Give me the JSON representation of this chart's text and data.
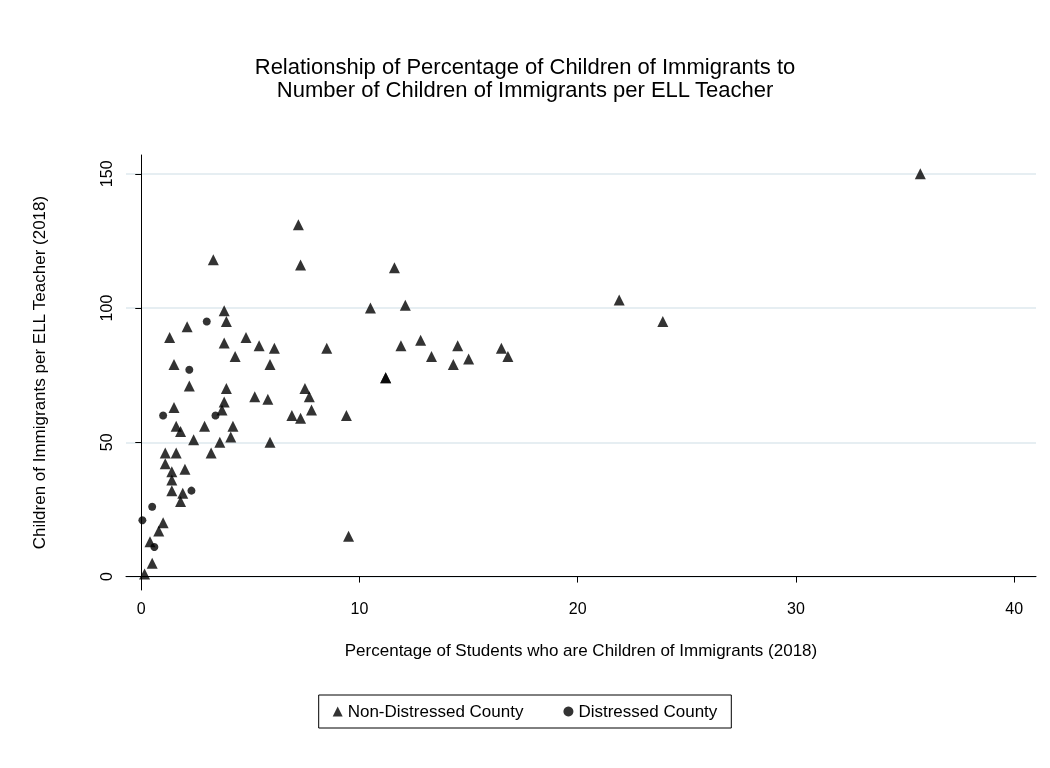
{
  "chart_data": {
    "type": "scatter",
    "title": "Relationship of Percentage of Children of Immigrants to\nNumber of Children of Immigrants per ELL Teacher",
    "xlabel": "Percentage of Students who are Children of Immigrants (2018)",
    "ylabel": "Children of Immigrants per ELL Teacher (2018)",
    "xlim": [
      -0.7,
      41
    ],
    "xticks": [
      0,
      10,
      20,
      30,
      40
    ],
    "ylim": [
      -5,
      157
    ],
    "yticks": [
      0,
      50,
      100,
      150
    ],
    "grid": "y",
    "legend": "bottom",
    "series": [
      {
        "name": "Non-Distressed County",
        "color": "#000000",
        "marker": "triangle",
        "x": [
          0.15,
          0.4,
          0.5,
          0.8,
          1.0,
          1.1,
          1.1,
          1.3,
          1.4,
          1.4,
          1.4,
          1.5,
          1.5,
          1.6,
          1.6,
          1.8,
          1.8,
          1.9,
          2.0,
          2.1,
          2.2,
          2.4,
          2.9,
          3.2,
          3.3,
          3.6,
          3.7,
          3.8,
          3.8,
          3.8,
          3.9,
          3.9,
          4.1,
          4.2,
          4.3,
          4.8,
          5.2,
          5.4,
          5.8,
          5.9,
          5.9,
          6.1,
          6.9,
          7.2,
          7.3,
          7.3,
          7.5,
          7.7,
          7.8,
          8.5,
          9.4,
          9.5,
          10.5,
          11.2,
          11.2,
          11.6,
          11.9,
          12.1,
          12.8,
          13.3,
          14.3,
          14.5,
          15.0,
          16.5,
          16.8,
          21.9,
          23.9,
          35.7
        ],
        "values": [
          1,
          13,
          5,
          17,
          20,
          46,
          42,
          89,
          39,
          36,
          32,
          79,
          63,
          46,
          56,
          28,
          54,
          31,
          40,
          93,
          71,
          51,
          56,
          46,
          118,
          50,
          62,
          65,
          87,
          99,
          95,
          70,
          52,
          56,
          82,
          89,
          67,
          86,
          66,
          79,
          50,
          85,
          60,
          131,
          116,
          59,
          70,
          67,
          62,
          85,
          60,
          15,
          100,
          74,
          74,
          115,
          86,
          101,
          88,
          82,
          79,
          86,
          81,
          85,
          82,
          103,
          95,
          150
        ]
      },
      {
        "name": "Distressed County",
        "color": "#000000",
        "marker": "circle",
        "x": [
          0.05,
          0.5,
          0.6,
          1.0,
          2.2,
          2.3,
          3.0,
          3.4
        ],
        "values": [
          21,
          26,
          11,
          60,
          77,
          32,
          95,
          60
        ]
      }
    ]
  }
}
